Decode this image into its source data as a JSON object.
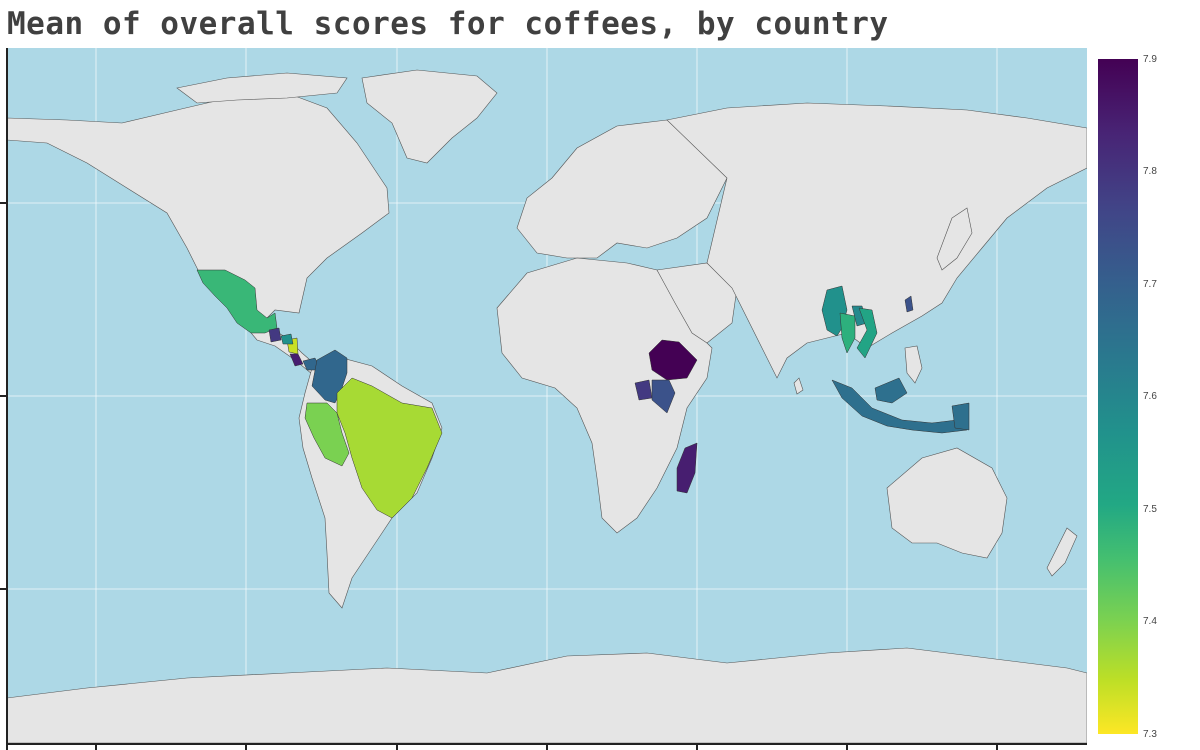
{
  "title": "Mean of overall scores for coffees, by country",
  "colorbar": {
    "ticks": [
      "7.9",
      "7.8",
      "7.7",
      "7.6",
      "7.5",
      "7.4",
      "7.3"
    ],
    "min": 7.3,
    "max": 7.9,
    "colorscale": [
      "#440154",
      "#482475",
      "#414487",
      "#355f8d",
      "#2a788e",
      "#21918c",
      "#22a884",
      "#44bf70",
      "#7ad151",
      "#bddf26",
      "#fde725"
    ]
  },
  "map_style": {
    "ocean_color": "#add8e6",
    "land_color": "#e5e5e5",
    "border_color": "#555555",
    "projection": "equirectangular"
  },
  "countries": [
    {
      "key": "mexico",
      "value": 7.5
    },
    {
      "key": "guatemala",
      "value": 7.8
    },
    {
      "key": "honduras",
      "value": 7.35
    },
    {
      "key": "nicaragua",
      "value": 7.6
    },
    {
      "key": "costa-rica",
      "value": 7.85
    },
    {
      "key": "panama",
      "value": 7.7
    },
    {
      "key": "colombia",
      "value": 7.7
    },
    {
      "key": "peru",
      "value": 7.42
    },
    {
      "key": "brazil",
      "value": 7.38
    },
    {
      "key": "ethiopia",
      "value": 7.9
    },
    {
      "key": "kenya",
      "value": 7.75
    },
    {
      "key": "uganda",
      "value": 7.8
    },
    {
      "key": "madagascar",
      "value": 7.85
    },
    {
      "key": "myanmar",
      "value": 7.6
    },
    {
      "key": "thailand",
      "value": 7.52
    },
    {
      "key": "laos",
      "value": 7.62
    },
    {
      "key": "vietnam",
      "value": 7.55
    },
    {
      "key": "taiwan",
      "value": 7.75
    },
    {
      "key": "indonesia",
      "value": 7.68
    },
    {
      "key": "papua-new-guinea",
      "value": 7.68
    }
  ]
}
